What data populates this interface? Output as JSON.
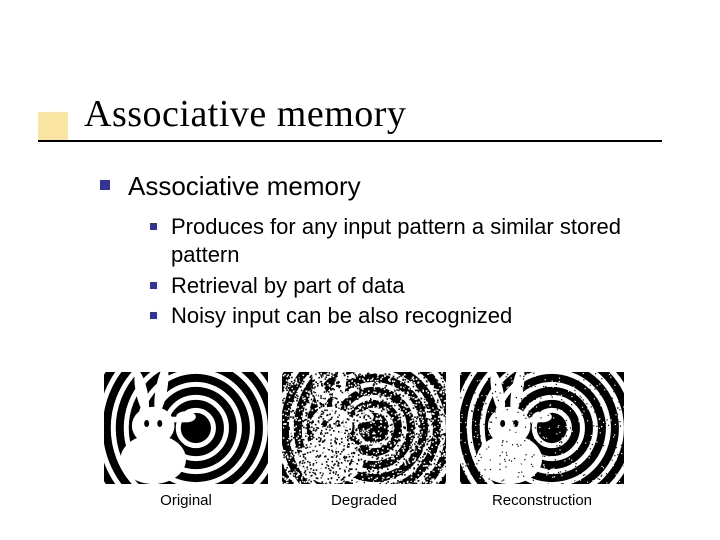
{
  "accent": {
    "color": "#f4c430"
  },
  "title": "Associative memory",
  "title_style": {
    "fontsize": 38,
    "color": "#000000",
    "font": "Times New Roman"
  },
  "bullet_color": "#333399",
  "underline_color": "#000000",
  "body": {
    "heading": "Associative memory",
    "items": [
      "Produces for any input pattern a similar stored pattern",
      "Retrieval by part of data",
      "Noisy input can be also recognized"
    ],
    "heading_fontsize": 26,
    "item_fontsize": 22
  },
  "figures": [
    {
      "caption": "Original",
      "kind": "clean"
    },
    {
      "caption": "Degraded",
      "kind": "noisy"
    },
    {
      "caption": "Reconstruction",
      "kind": "dotnoise"
    }
  ],
  "figure_style": {
    "width": 164,
    "height": 112,
    "bg": "#000000",
    "fg": "#ffffff",
    "caption_fontsize": 15
  }
}
